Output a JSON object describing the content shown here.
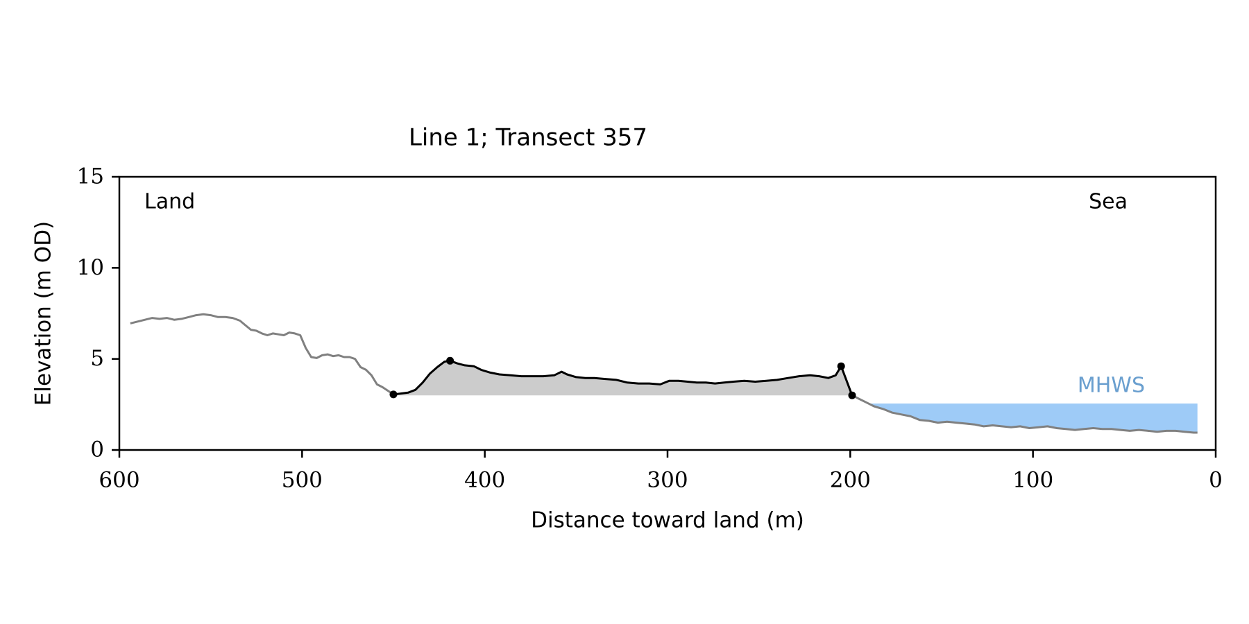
{
  "chart_data": {
    "type": "area",
    "title": "Line 1; Transect 357",
    "xlabel": "Distance toward land (m)",
    "ylabel": "Elevation (m OD)",
    "xlim": [
      600,
      0
    ],
    "ylim": [
      0,
      15
    ],
    "x_ticks": [
      600,
      500,
      400,
      300,
      200,
      100,
      0
    ],
    "y_ticks": [
      0,
      5,
      10,
      15
    ],
    "grid": false,
    "annotations": {
      "land": "Land",
      "sea": "Sea",
      "mhws_label": "MHWS"
    },
    "mhws": {
      "elevation": 2.55,
      "x_from": 190,
      "x_to": 10
    },
    "dune_base_elevation": 3.0,
    "profile": [
      [
        594,
        6.95
      ],
      [
        590,
        7.05
      ],
      [
        586,
        7.15
      ],
      [
        582,
        7.25
      ],
      [
        578,
        7.2
      ],
      [
        574,
        7.25
      ],
      [
        570,
        7.15
      ],
      [
        566,
        7.2
      ],
      [
        562,
        7.3
      ],
      [
        558,
        7.4
      ],
      [
        554,
        7.45
      ],
      [
        550,
        7.4
      ],
      [
        546,
        7.3
      ],
      [
        542,
        7.3
      ],
      [
        538,
        7.25
      ],
      [
        534,
        7.1
      ],
      [
        531,
        6.85
      ],
      [
        528,
        6.6
      ],
      [
        525,
        6.55
      ],
      [
        522,
        6.4
      ],
      [
        519,
        6.3
      ],
      [
        516,
        6.4
      ],
      [
        513,
        6.35
      ],
      [
        510,
        6.3
      ],
      [
        507,
        6.45
      ],
      [
        504,
        6.4
      ],
      [
        501,
        6.3
      ],
      [
        498,
        5.6
      ],
      [
        495,
        5.1
      ],
      [
        492,
        5.05
      ],
      [
        489,
        5.2
      ],
      [
        486,
        5.25
      ],
      [
        483,
        5.15
      ],
      [
        480,
        5.2
      ],
      [
        477,
        5.1
      ],
      [
        474,
        5.1
      ],
      [
        471,
        5.0
      ],
      [
        468,
        4.55
      ],
      [
        465,
        4.4
      ],
      [
        462,
        4.1
      ],
      [
        459,
        3.6
      ],
      [
        456,
        3.45
      ],
      [
        453,
        3.25
      ],
      [
        450,
        3.05
      ]
    ],
    "dune": [
      [
        450,
        3.05
      ],
      [
        446,
        3.1
      ],
      [
        442,
        3.15
      ],
      [
        438,
        3.3
      ],
      [
        434,
        3.7
      ],
      [
        430,
        4.2
      ],
      [
        426,
        4.55
      ],
      [
        422,
        4.85
      ],
      [
        419,
        4.9
      ],
      [
        415,
        4.75
      ],
      [
        411,
        4.65
      ],
      [
        406,
        4.6
      ],
      [
        402,
        4.4
      ],
      [
        397,
        4.25
      ],
      [
        392,
        4.15
      ],
      [
        386,
        4.1
      ],
      [
        380,
        4.05
      ],
      [
        374,
        4.05
      ],
      [
        368,
        4.05
      ],
      [
        362,
        4.1
      ],
      [
        358,
        4.3
      ],
      [
        355,
        4.15
      ],
      [
        350,
        4.0
      ],
      [
        345,
        3.95
      ],
      [
        340,
        3.95
      ],
      [
        334,
        3.9
      ],
      [
        328,
        3.85
      ],
      [
        322,
        3.7
      ],
      [
        316,
        3.65
      ],
      [
        310,
        3.65
      ],
      [
        304,
        3.6
      ],
      [
        299,
        3.8
      ],
      [
        294,
        3.8
      ],
      [
        289,
        3.75
      ],
      [
        284,
        3.7
      ],
      [
        279,
        3.7
      ],
      [
        274,
        3.65
      ],
      [
        269,
        3.7
      ],
      [
        264,
        3.75
      ],
      [
        258,
        3.8
      ],
      [
        252,
        3.75
      ],
      [
        246,
        3.8
      ],
      [
        240,
        3.85
      ],
      [
        234,
        3.95
      ],
      [
        228,
        4.05
      ],
      [
        222,
        4.1
      ],
      [
        217,
        4.05
      ],
      [
        212,
        3.95
      ],
      [
        208,
        4.1
      ],
      [
        205,
        4.6
      ],
      [
        202,
        3.8
      ],
      [
        199,
        3.0
      ]
    ],
    "foreshore": [
      [
        199,
        3.0
      ],
      [
        195,
        2.8
      ],
      [
        191,
        2.6
      ],
      [
        187,
        2.4
      ],
      [
        182,
        2.25
      ],
      [
        177,
        2.05
      ],
      [
        172,
        1.95
      ],
      [
        167,
        1.85
      ],
      [
        162,
        1.65
      ],
      [
        157,
        1.6
      ],
      [
        152,
        1.5
      ],
      [
        147,
        1.55
      ],
      [
        142,
        1.5
      ],
      [
        137,
        1.45
      ],
      [
        132,
        1.4
      ],
      [
        127,
        1.3
      ],
      [
        122,
        1.35
      ],
      [
        117,
        1.3
      ],
      [
        112,
        1.25
      ],
      [
        107,
        1.3
      ],
      [
        102,
        1.2
      ],
      [
        97,
        1.25
      ],
      [
        92,
        1.3
      ],
      [
        87,
        1.2
      ],
      [
        82,
        1.15
      ],
      [
        77,
        1.1
      ],
      [
        72,
        1.15
      ],
      [
        67,
        1.2
      ],
      [
        62,
        1.15
      ],
      [
        57,
        1.15
      ],
      [
        52,
        1.1
      ],
      [
        47,
        1.05
      ],
      [
        42,
        1.1
      ],
      [
        37,
        1.05
      ],
      [
        32,
        1.0
      ],
      [
        27,
        1.05
      ],
      [
        22,
        1.05
      ],
      [
        17,
        1.0
      ],
      [
        12,
        0.95
      ],
      [
        10,
        0.95
      ]
    ],
    "markers": [
      [
        450,
        3.05
      ],
      [
        419,
        4.9
      ],
      [
        205,
        4.6
      ],
      [
        199,
        3.0
      ]
    ],
    "colors": {
      "profile": "#808080",
      "dune_line": "#000000",
      "dune_fill": "#cccccc",
      "mhws_fill": "#9ecbf7",
      "mhws_text": "#6a9fcf"
    }
  }
}
